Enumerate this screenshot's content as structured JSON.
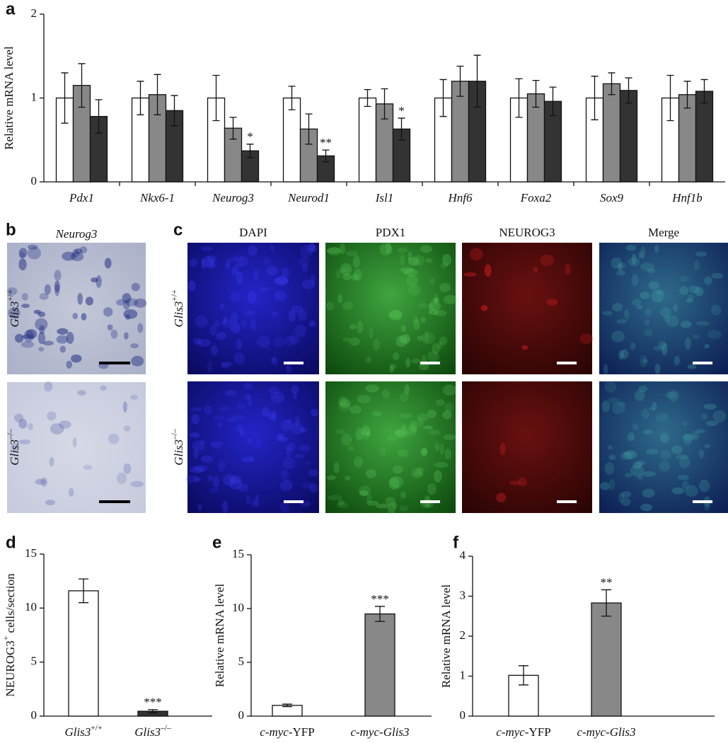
{
  "panel_labels": [
    "a",
    "b",
    "c",
    "d",
    "e",
    "f"
  ],
  "images": {
    "b": {
      "title": [
        {
          "text": "Neurog3",
          "italic": true
        }
      ],
      "rows": [
        [
          {
            "text": "Glis3",
            "italic": true
          },
          {
            "text": "+/+",
            "sup": true
          }
        ],
        [
          {
            "text": "Glis3",
            "italic": true
          },
          {
            "text": "–/–",
            "sup": true
          }
        ]
      ]
    },
    "c": {
      "columns": [
        {
          "text": "DAPI",
          "color": "#2222dd"
        },
        {
          "text": "PDX1",
          "color": "#22aa22"
        },
        {
          "text": "NEUROG3",
          "color": "#ee3322"
        },
        {
          "text": "Merge",
          "color": "#111111"
        }
      ],
      "rows": [
        [
          {
            "text": "Glis3",
            "italic": true
          },
          {
            "text": "+/+",
            "sup": true
          }
        ],
        [
          {
            "text": "Glis3",
            "italic": true
          },
          {
            "text": "–/–",
            "sup": true
          }
        ]
      ]
    }
  },
  "chart_data": [
    {
      "type": "bar",
      "y_label": [
        {
          "text": "Relative mRNA level"
        }
      ],
      "categories": [
        [
          {
            "text": "Pdx1",
            "italic": true
          }
        ],
        [
          {
            "text": "Nkx6-1",
            "italic": true
          }
        ],
        [
          {
            "text": "Neurog3",
            "italic": true
          }
        ],
        [
          {
            "text": "Neurod1",
            "italic": true
          }
        ],
        [
          {
            "text": "Isl1",
            "italic": true
          }
        ],
        [
          {
            "text": "Hnf6",
            "italic": true
          }
        ],
        [
          {
            "text": "Foxa2",
            "italic": true
          }
        ],
        [
          {
            "text": "Sox9",
            "italic": true
          }
        ],
        [
          {
            "text": "Hnf1b",
            "italic": true
          }
        ]
      ],
      "series": [
        {
          "color": "#ffffff",
          "values": [
            1.0,
            1.0,
            1.0,
            1.0,
            1.0,
            1.0,
            1.0,
            1.0,
            1.0
          ],
          "errors": [
            0.3,
            0.2,
            0.27,
            0.14,
            0.1,
            0.22,
            0.23,
            0.26,
            0.27
          ]
        },
        {
          "color": "#888888",
          "values": [
            1.15,
            1.04,
            0.64,
            0.63,
            0.93,
            1.2,
            1.05,
            1.17,
            1.04
          ],
          "errors": [
            0.26,
            0.24,
            0.13,
            0.18,
            0.18,
            0.18,
            0.16,
            0.13,
            0.16
          ]
        },
        {
          "color": "#333333",
          "values": [
            0.78,
            0.85,
            0.37,
            0.31,
            0.63,
            1.2,
            0.96,
            1.09,
            1.08
          ],
          "errors": [
            0.2,
            0.18,
            0.08,
            0.07,
            0.13,
            0.31,
            0.17,
            0.15,
            0.14
          ],
          "significance": [
            null,
            null,
            "*",
            "**",
            "*",
            null,
            null,
            null,
            null
          ]
        }
      ],
      "ylim": [
        0,
        2
      ],
      "yticks": [
        0,
        1,
        2
      ]
    },
    {
      "type": "bar",
      "y_label": [
        {
          "text": "NEUROG3"
        },
        {
          "text": "+",
          "sup": true
        },
        {
          "text": " cells/section"
        }
      ],
      "categories": [
        [
          {
            "text": "Glis3",
            "italic": true
          },
          {
            "text": "+/+",
            "sup": true
          }
        ],
        [
          {
            "text": "Glis3",
            "italic": true
          },
          {
            "text": "–/–",
            "sup": true
          }
        ]
      ],
      "series": [
        {
          "colors": [
            "#ffffff",
            "#333333"
          ],
          "values": [
            11.6,
            0.45
          ],
          "errors": [
            1.1,
            0.15
          ],
          "significance": [
            null,
            "***"
          ]
        }
      ],
      "ylim": [
        0,
        15
      ],
      "yticks": [
        0,
        5,
        10,
        15
      ]
    },
    {
      "type": "bar",
      "y_label": [
        {
          "text": "Relative mRNA level"
        }
      ],
      "categories": [
        [
          {
            "text": "c-myc",
            "italic": true
          },
          {
            "text": "-YFP"
          }
        ],
        [
          {
            "text": "c-myc",
            "italic": true
          },
          {
            "text": "-"
          },
          {
            "text": "Glis3",
            "italic": true
          }
        ]
      ],
      "series": [
        {
          "colors": [
            "#ffffff",
            "#888888"
          ],
          "values": [
            1.0,
            9.5
          ],
          "errors": [
            0.12,
            0.7
          ],
          "significance": [
            null,
            "***"
          ]
        }
      ],
      "ylim": [
        0,
        15
      ],
      "yticks": [
        0,
        5,
        10,
        15
      ]
    },
    {
      "type": "bar",
      "y_label": [
        {
          "text": "Relative mRNA level"
        }
      ],
      "categories": [
        [
          {
            "text": "c-myc",
            "italic": true
          },
          {
            "text": "-YFP"
          }
        ],
        [
          {
            "text": "c-myc",
            "italic": true
          },
          {
            "text": "-"
          },
          {
            "text": "Glis3",
            "italic": true
          }
        ]
      ],
      "series": [
        {
          "colors": [
            "#ffffff",
            "#888888"
          ],
          "values": [
            1.02,
            2.83
          ],
          "errors": [
            0.24,
            0.33
          ],
          "significance": [
            null,
            "**"
          ]
        }
      ],
      "ylim": [
        0,
        4
      ],
      "yticks": [
        0,
        1,
        2,
        3,
        4
      ]
    }
  ]
}
